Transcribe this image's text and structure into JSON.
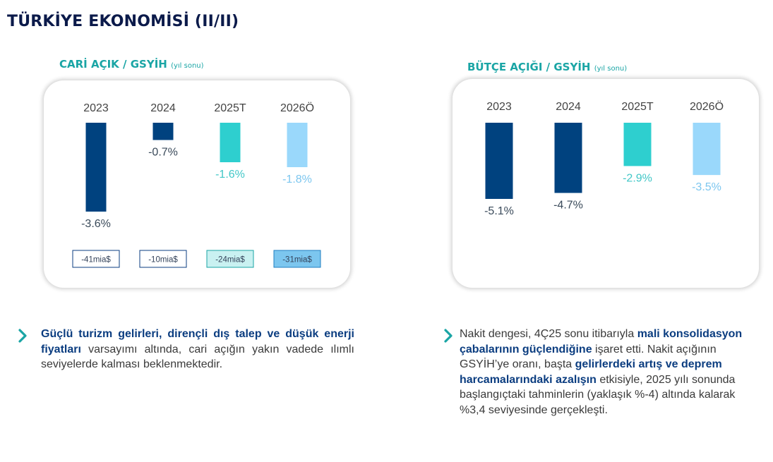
{
  "page": {
    "title": "TÜRKİYE EKONOMİSİ (II/II)"
  },
  "colors": {
    "title": "#0b1a4a",
    "accent": "#1aa5a5",
    "dark_bar": "#00427f",
    "teal_bar": "#2ecfcf",
    "light_bar": "#9ad8fb",
    "bold_text": "#0b3d80"
  },
  "chart_data": [
    {
      "type": "bar",
      "title": "CARİ AÇIK / GSYİH",
      "subtitle": "(yıl sonu)",
      "categories": [
        "2023",
        "2024",
        "2025T",
        "2026Ö"
      ],
      "values": [
        -3.6,
        -0.7,
        -1.6,
        -1.8
      ],
      "value_labels": [
        "-3.6%",
        "-0.7%",
        "-1.6%",
        "-1.8%"
      ],
      "bar_colors": [
        "#00427f",
        "#00427f",
        "#2ecfcf",
        "#9ad8fb"
      ],
      "label_colors": [
        "#3a4a5a",
        "#3a4a5a",
        "#41c7c7",
        "#7cc6ef"
      ],
      "amounts": [
        "-41mia$",
        "-10mia$",
        "-24mia$",
        "-31mia$"
      ],
      "amount_fills": [
        "#ffffff",
        "#ffffff",
        "#c9f1f1",
        "#7cc6ef"
      ],
      "amount_borders": [
        "#0b3d80",
        "#0b3d80",
        "#1aa5a5",
        "#1f7fc2"
      ],
      "ylim": [
        -3.6,
        0
      ]
    },
    {
      "type": "bar",
      "title": "BÜTÇE AÇIĞI / GSYİH",
      "subtitle": "(yıl sonu)",
      "categories": [
        "2023",
        "2024",
        "2025T",
        "2026Ö"
      ],
      "values": [
        -5.1,
        -4.7,
        -2.9,
        -3.5
      ],
      "value_labels": [
        "-5.1%",
        "-4.7%",
        "-2.9%",
        "-3.5%"
      ],
      "bar_colors": [
        "#00427f",
        "#00427f",
        "#2ecfcf",
        "#9ad8fb"
      ],
      "label_colors": [
        "#3a4a5a",
        "#3a4a5a",
        "#41c7c7",
        "#7cc6ef"
      ],
      "ylim": [
        -5.1,
        0
      ]
    }
  ],
  "bullets": {
    "left": [
      {
        "text": " Güçlü turizm gelirleri, dirençli dış talep ve düşük enerji fiyatları",
        "bold": true
      },
      {
        "text": " varsayımı altında, cari açığın yakın vadede ılımlı seviyelerde kalması beklenmektedir.",
        "bold": false
      }
    ],
    "right": [
      {
        "text": "Nakit dengesi, 4Ç25 sonu itibarıyla ",
        "bold": false
      },
      {
        "text": "mali konsolidasyon çabalarının güçlendiğine",
        "bold": true
      },
      {
        "text": " işaret etti. Nakit açığının GSYİH’ye oranı, başta ",
        "bold": false
      },
      {
        "text": "gelirlerdeki artış ve deprem harcamalarındaki azalışın",
        "bold": true
      },
      {
        "text": " etkisiyle, 2025 yılı sonunda başlangıçtaki tahminlerin (yaklaşık %-4) altında kalarak %3,4 seviyesinde gerçekleşti.",
        "bold": false
      }
    ]
  }
}
